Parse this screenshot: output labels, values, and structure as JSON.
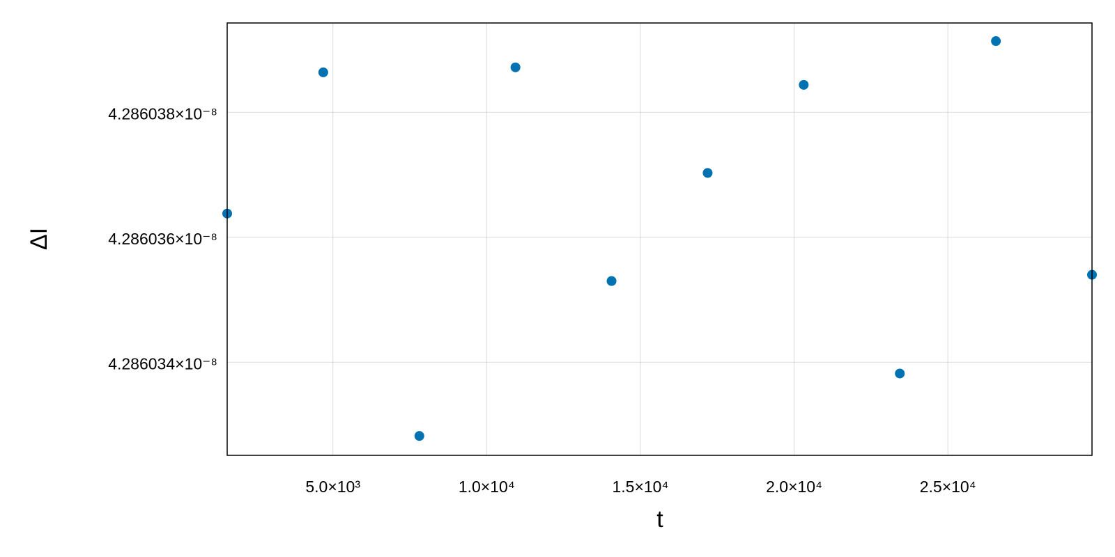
{
  "chart_data": {
    "type": "scatter",
    "xlabel": "t",
    "ylabel": "ΔI",
    "x": [
      1562.5,
      4687.5,
      7812.5,
      10937.5,
      14062.5,
      17187.5,
      20312.5,
      23437.5,
      26562.5,
      29687.5
    ],
    "values": [
      4.28603638e-08,
      4.28603864e-08,
      4.28603282e-08,
      4.28603872e-08,
      4.2860353e-08,
      4.28603703e-08,
      4.28603844e-08,
      4.28603382e-08,
      4.28603914e-08,
      4.2860354e-08
    ],
    "color": "#0072b2",
    "xlim": [
      1562.5,
      29687.5
    ],
    "ylim": [
      4.28603251e-08,
      4.28603943e-08
    ],
    "xticks": [
      {
        "value": 5000,
        "label": "5.0×10³"
      },
      {
        "value": 10000,
        "label": "1.0×10⁴"
      },
      {
        "value": 15000,
        "label": "1.5×10⁴"
      },
      {
        "value": 20000,
        "label": "2.0×10⁴"
      },
      {
        "value": 25000,
        "label": "2.5×10⁴"
      }
    ],
    "yticks": [
      {
        "value": 4.286034e-08,
        "label": "4.286034×10⁻⁸"
      },
      {
        "value": 4.286036e-08,
        "label": "4.286036×10⁻⁸"
      },
      {
        "value": 4.286038e-08,
        "label": "4.286038×10⁻⁸"
      }
    ],
    "grid": true
  }
}
